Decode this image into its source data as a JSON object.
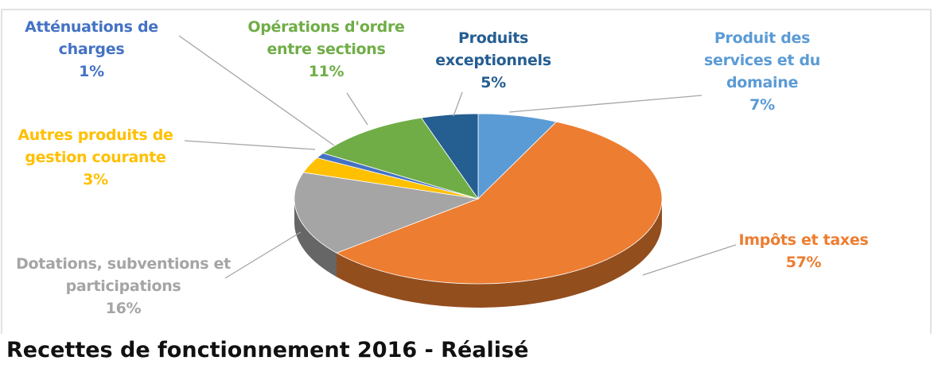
{
  "chart_data": {
    "type": "pie",
    "title": "Recettes de fonctionnement 2016 - Réalisé",
    "categories": [
      "Produit des services et du domaine",
      "Impôts et taxes",
      "Dotations, subventions et participations",
      "Autres produits de gestion courante",
      "Atténuations de charges",
      "Opérations d'ordre entre sections",
      "Produits exceptionnels"
    ],
    "values": [
      7,
      57,
      16,
      3,
      1,
      11,
      5
    ],
    "value_labels": [
      "7%",
      "57%",
      "16%",
      "3%",
      "1%",
      "11%",
      "5%"
    ],
    "colors": [
      "#5b9bd5",
      "#ed7d31",
      "#a5a5a5",
      "#ffc000",
      "#4472c4",
      "#70ad47",
      "#255e91"
    ]
  }
}
